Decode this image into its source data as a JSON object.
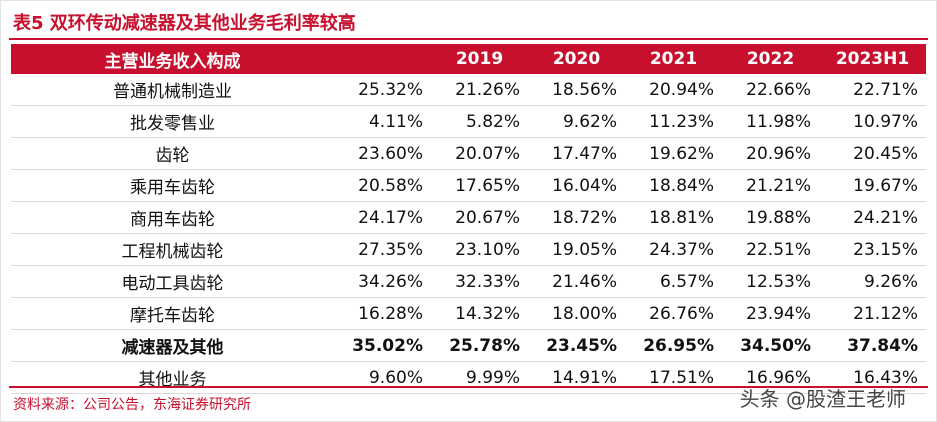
{
  "title": "表5  双环传动减速器及其他业务毛利率较高",
  "table": {
    "headers": [
      "主营业务收入构成",
      "",
      "2019",
      "2020",
      "2021",
      "2022",
      "2023H1"
    ],
    "rows": [
      {
        "label": "普通机械制造业",
        "values": [
          "25.32%",
          "21.26%",
          "18.56%",
          "20.94%",
          "22.66%",
          "22.71%"
        ]
      },
      {
        "label": "批发零售业",
        "values": [
          "4.11%",
          "5.82%",
          "9.62%",
          "11.23%",
          "11.98%",
          "10.97%"
        ]
      },
      {
        "label": "齿轮",
        "values": [
          "23.60%",
          "20.07%",
          "17.47%",
          "19.62%",
          "20.96%",
          "20.45%"
        ]
      },
      {
        "label": "乘用车齿轮",
        "values": [
          "20.58%",
          "17.65%",
          "16.04%",
          "18.84%",
          "21.21%",
          "19.67%"
        ]
      },
      {
        "label": "商用车齿轮",
        "values": [
          "24.17%",
          "20.67%",
          "18.72%",
          "18.81%",
          "19.88%",
          "24.21%"
        ]
      },
      {
        "label": "工程机械齿轮",
        "values": [
          "27.35%",
          "23.10%",
          "19.05%",
          "24.37%",
          "22.51%",
          "23.15%"
        ]
      },
      {
        "label": "电动工具齿轮",
        "values": [
          "34.26%",
          "32.33%",
          "21.46%",
          "6.57%",
          "12.53%",
          "9.26%"
        ]
      },
      {
        "label": "摩托车齿轮",
        "values": [
          "16.28%",
          "14.32%",
          "18.00%",
          "26.76%",
          "23.94%",
          "21.12%"
        ]
      },
      {
        "label": "减速器及其他",
        "values": [
          "35.02%",
          "25.78%",
          "23.45%",
          "26.95%",
          "34.50%",
          "37.84%"
        ],
        "bold": true
      },
      {
        "label": "其他业务",
        "values": [
          "9.60%",
          "9.99%",
          "14.91%",
          "17.51%",
          "16.96%",
          "16.43%"
        ]
      }
    ]
  },
  "source": "资料来源：公司公告，东海证券研究所",
  "watermark": "头条 @股渣王老师"
}
